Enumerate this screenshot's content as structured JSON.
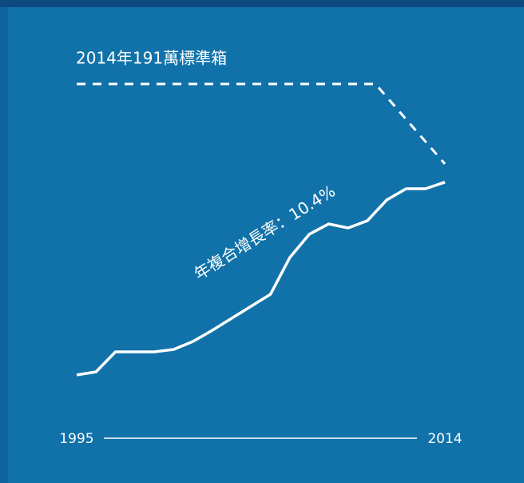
{
  "chart_data": {
    "type": "line",
    "title": "2014年191萬標準箱",
    "annotation": "年複合增長率：10.4%",
    "x": [
      1995,
      1996,
      1997,
      1998,
      1999,
      2000,
      2001,
      2002,
      2003,
      2004,
      2005,
      2006,
      2007,
      2008,
      2009,
      2010,
      2011,
      2012,
      2013,
      2014
    ],
    "series": [
      {
        "color": "#ffffff",
        "values": [
          29,
          31.6,
          48.4,
          48.4,
          48.4,
          50.4,
          57.1,
          66.5,
          76.6,
          86.7,
          96.8,
          127.7,
          147.2,
          155.9,
          152.5,
          158.6,
          176.1,
          185.5,
          185.5,
          191
        ]
      }
    ],
    "xlim": [
      1995,
      2014
    ],
    "xticks": [
      1995,
      2014
    ],
    "ylim": [
      0,
      200
    ]
  }
}
